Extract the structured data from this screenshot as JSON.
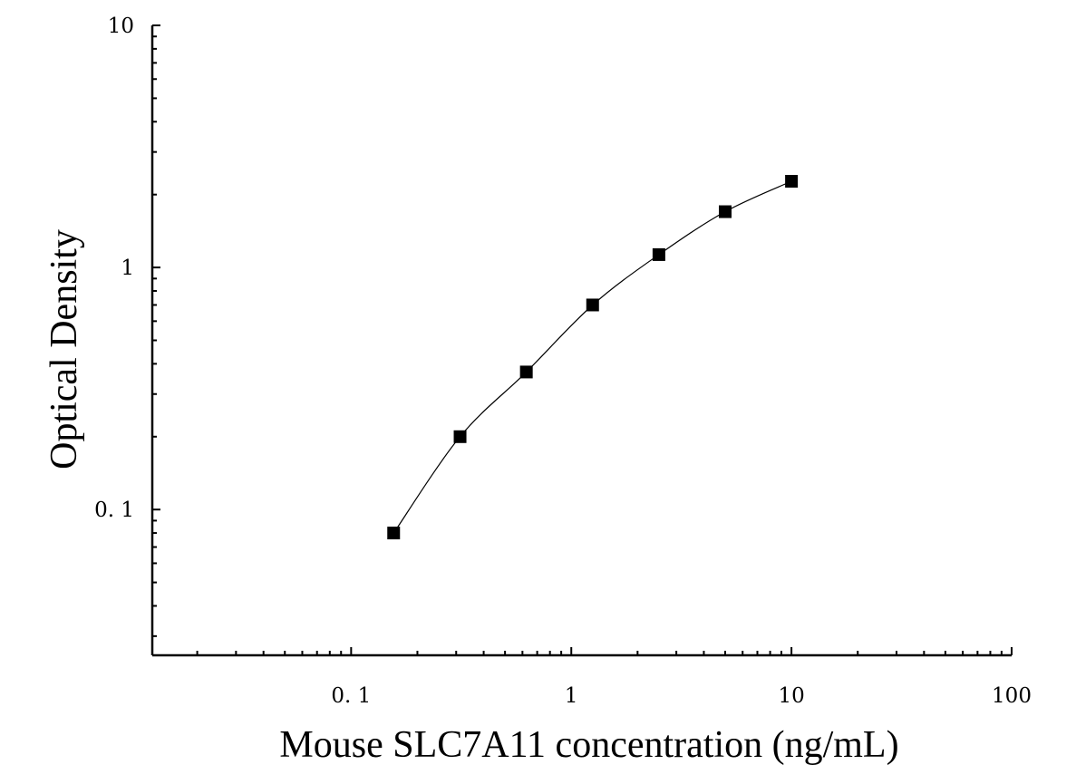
{
  "chart_data": {
    "type": "scatter",
    "xlabel": "Mouse SLC7A11 concentration (ng/mL)",
    "ylabel": "Optical Density",
    "xscale": "log",
    "yscale": "log",
    "xlim": [
      0.0125,
      100
    ],
    "ylim": [
      0.025,
      10
    ],
    "x_ticks": [
      0.1,
      1,
      10,
      100
    ],
    "x_tick_labels": [
      "0. 1",
      "1",
      "10",
      "100"
    ],
    "y_ticks": [
      0.1,
      1,
      10
    ],
    "y_tick_labels": [
      "0. 1",
      "1",
      "10"
    ],
    "grid": false,
    "legend": "none",
    "marker": "square",
    "marker_color": "#000000",
    "curve": "fitted",
    "points": [
      {
        "x": 0.156,
        "y": 0.08
      },
      {
        "x": 0.3125,
        "y": 0.2
      },
      {
        "x": 0.625,
        "y": 0.37
      },
      {
        "x": 1.25,
        "y": 0.7
      },
      {
        "x": 2.5,
        "y": 1.13
      },
      {
        "x": 5.0,
        "y": 1.7
      },
      {
        "x": 10.0,
        "y": 2.27
      }
    ]
  }
}
